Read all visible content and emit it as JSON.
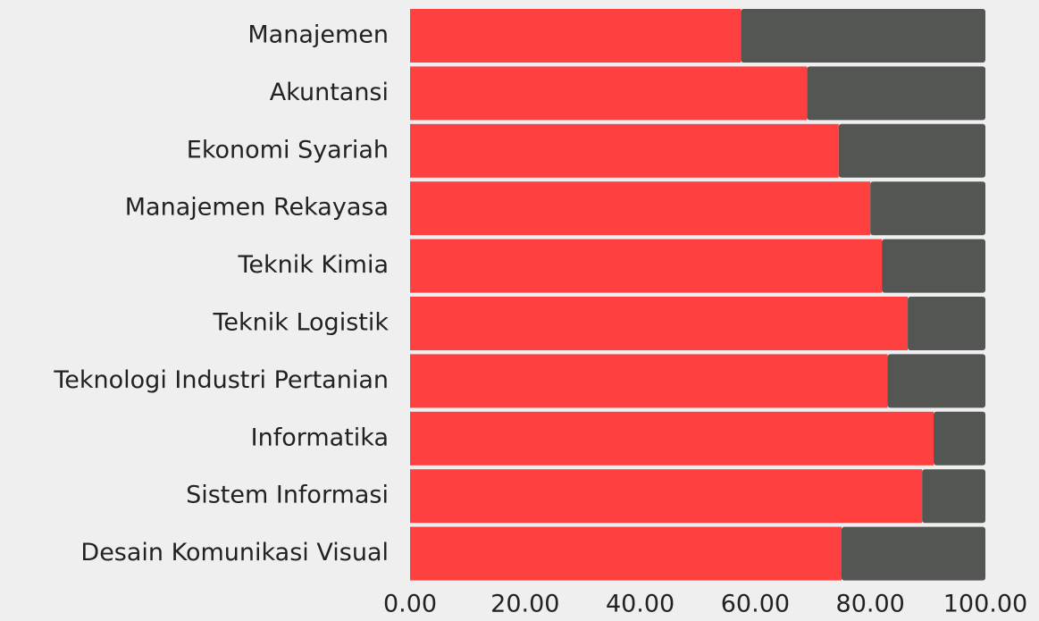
{
  "chart_data": {
    "type": "stacked-bar-horizontal",
    "categories": [
      "Manajemen",
      "Akuntansi",
      "Ekonomi Syariah",
      "Manajemen Rekayasa",
      "Teknik Kimia",
      "Teknik Logistik",
      "Teknologi Industri Pertanian",
      "Informatika",
      "Sistem Informasi",
      "Desain Komunikasi Visual"
    ],
    "series": [
      {
        "color": "#ff4040",
        "values": [
          57.5,
          69,
          74.5,
          80,
          82,
          86.5,
          83,
          91,
          89,
          75
        ]
      },
      {
        "color": "#545654",
        "values": [
          42.5,
          31,
          25.5,
          20,
          18,
          13.5,
          17,
          9,
          11,
          25
        ]
      }
    ],
    "xlim": [
      0,
      100
    ],
    "xticks": [
      {
        "value": 0,
        "label": "0.00"
      },
      {
        "value": 20,
        "label": "20.00"
      },
      {
        "value": 40,
        "label": "40.00"
      },
      {
        "value": 60,
        "label": "60.00"
      },
      {
        "value": 80,
        "label": "80.00"
      },
      {
        "value": 100,
        "label": "100.00"
      }
    ]
  }
}
